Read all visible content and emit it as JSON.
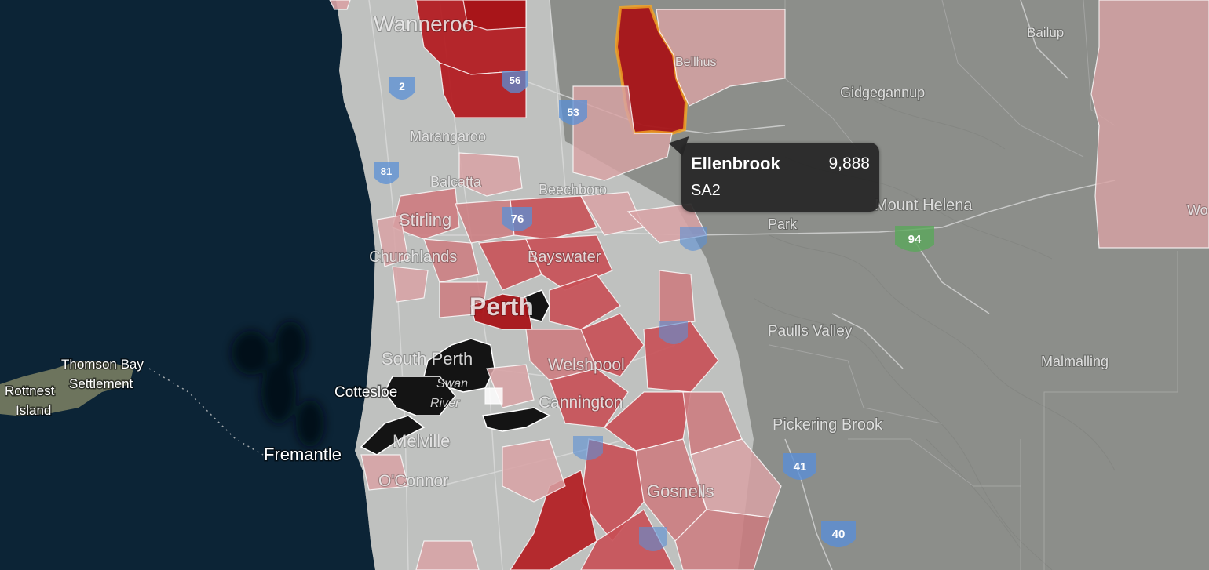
{
  "map": {
    "colors": {
      "ocean": "#0c2436",
      "land": "#8c8e8a",
      "urban": "#c4c6c4",
      "choropleth_light": "#d8a2a4",
      "choropleth_mid": "#c84f55",
      "choropleth_dark": "#a81418",
      "no_data": "#141414",
      "selection_outline": "#f5a623",
      "highway_shield": "#5a8fd6",
      "state_route_shield": "#5aa85a"
    },
    "places": {
      "wanneroo": "Wanneroo",
      "bullsbrook": "Bellhus",
      "bailup": "Bailup",
      "gidgegannup": "Gidgegannup",
      "marangaroo": "Marangaroo",
      "balcatta": "Balcatta",
      "beechboro": "Beechboro",
      "mount_helena": "Mount Helena",
      "park": "Park",
      "stirling": "Stirling",
      "churchlands": "Churchlands",
      "bayswater": "Bayswater",
      "perth": "Perth",
      "pauls_valley": "Paulls Valley",
      "malmalling": "Malmalling",
      "south_perth": "South Perth",
      "welshpool": "Welshpool",
      "thomson_bay_1": "Thomson Bay",
      "thomson_bay_2": "Settlement",
      "rottnest_1": "Rottnest",
      "rottnest_2": "Island",
      "cottesloe": "Cottesloe",
      "swan_river_1": "Swan",
      "swan_river_2": "River",
      "cannington": "Cannington",
      "melville": "Melville",
      "pickering_brook": "Pickering Brook",
      "fremantle": "Fremantle",
      "oconnor": "O'Connor",
      "gosnells": "Gosnells",
      "wooroloo": "Wo"
    },
    "shields": {
      "s2": "2",
      "s53": "53",
      "s56": "56",
      "s81": "81",
      "s76": "76",
      "s94": "94",
      "s41": "41",
      "s40": "40"
    }
  },
  "tooltip": {
    "name": "Ellenbrook",
    "value": "9,888",
    "region_type": "SA2"
  }
}
